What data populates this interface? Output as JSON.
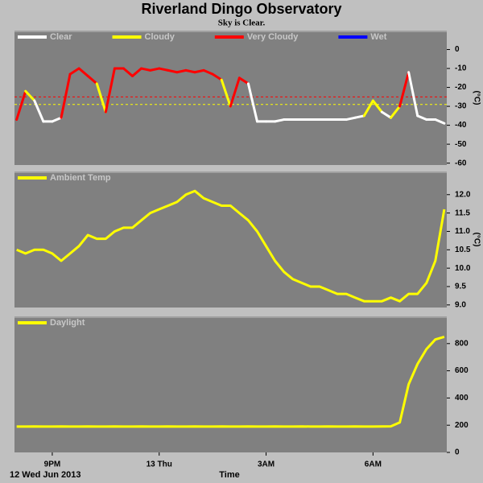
{
  "title": "Riverland Dingo Observatory",
  "subtitle": "Sky is Clear.",
  "date_label": "12 Wed Jun 2013",
  "xlabel": "Time",
  "chart_data": [
    {
      "type": "condition_line",
      "ylabel": "(°C)",
      "x": [
        20.0,
        20.25,
        20.5,
        20.75,
        21.0,
        21.25,
        21.5,
        21.75,
        22.0,
        22.25,
        22.5,
        22.75,
        23.0,
        23.25,
        23.5,
        23.75,
        24.0,
        24.25,
        24.5,
        24.75,
        25.0,
        25.25,
        25.5,
        25.75,
        26.0,
        26.25,
        26.5,
        26.75,
        27.0,
        27.25,
        27.5,
        27.75,
        28.0,
        28.25,
        28.5,
        28.75,
        29.0,
        29.25,
        29.5,
        29.75,
        30.0,
        30.25,
        30.5,
        30.75,
        31.0,
        31.25,
        31.5,
        31.75,
        32.0
      ],
      "xlim": [
        19.94,
        32.07
      ],
      "ylim": [
        -61,
        10
      ],
      "yticks": [
        0,
        -10,
        -20,
        -30,
        -40,
        -50,
        -60
      ],
      "thresholds": [
        {
          "value": -25,
          "color": "#ff0000"
        },
        {
          "value": -29,
          "color": "#ffff00"
        }
      ],
      "series": [
        {
          "name": "Clear",
          "color": "#ffffff",
          "values": [
            -37,
            null,
            null,
            -38,
            -38,
            -36,
            null,
            null,
            null,
            null,
            null,
            null,
            null,
            null,
            null,
            null,
            null,
            null,
            null,
            null,
            null,
            null,
            null,
            null,
            null,
            null,
            null,
            -38,
            -38,
            -38,
            -37,
            -37,
            -37,
            -37,
            -37,
            -37,
            -37,
            -37,
            -36,
            -35,
            null,
            null,
            -36,
            null,
            null,
            -35,
            -37,
            -37,
            -39
          ]
        },
        {
          "name": "Cloudy",
          "color": "#ffff00",
          "values": [
            null,
            null,
            -27,
            null,
            null,
            null,
            null,
            null,
            null,
            null,
            -33,
            null,
            null,
            null,
            null,
            null,
            null,
            null,
            null,
            null,
            null,
            null,
            null,
            null,
            -30,
            null,
            null,
            null,
            null,
            null,
            null,
            null,
            null,
            null,
            null,
            null,
            null,
            null,
            null,
            null,
            -27,
            -33,
            null,
            -30,
            null,
            null,
            null,
            null,
            null
          ]
        },
        {
          "name": "Very Cloudy",
          "color": "#ff0000",
          "values": [
            null,
            -22,
            null,
            null,
            null,
            null,
            -13,
            -10,
            -14,
            -18,
            null,
            -10,
            -10,
            -14,
            -10,
            -11,
            -10,
            -11,
            -12,
            -11,
            -12,
            -11,
            -13,
            -16,
            null,
            -15,
            -18,
            null,
            null,
            null,
            null,
            null,
            null,
            null,
            null,
            null,
            null,
            null,
            null,
            null,
            null,
            null,
            null,
            null,
            -12,
            null,
            null,
            null,
            null
          ]
        },
        {
          "name": "Wet",
          "color": "#0000ff",
          "values": [
            null,
            null,
            null,
            null,
            null,
            null,
            null,
            null,
            null,
            null,
            null,
            null,
            null,
            null,
            null,
            null,
            null,
            null,
            null,
            null,
            null,
            null,
            null,
            null,
            null,
            null,
            null,
            null,
            null,
            null,
            null,
            null,
            null,
            null,
            null,
            null,
            null,
            null,
            null,
            null,
            null,
            null,
            null,
            null,
            null,
            null,
            null,
            null,
            null
          ]
        }
      ]
    },
    {
      "type": "line",
      "ylabel": "(°C)",
      "x": [
        20.0,
        20.25,
        20.5,
        20.75,
        21.0,
        21.25,
        21.5,
        21.75,
        22.0,
        22.25,
        22.5,
        22.75,
        23.0,
        23.25,
        23.5,
        23.75,
        24.0,
        24.25,
        24.5,
        24.75,
        25.0,
        25.25,
        25.5,
        25.75,
        26.0,
        26.25,
        26.5,
        26.75,
        27.0,
        27.25,
        27.5,
        27.75,
        28.0,
        28.25,
        28.5,
        28.75,
        29.0,
        29.25,
        29.5,
        29.75,
        30.0,
        30.25,
        30.5,
        30.75,
        31.0,
        31.25,
        31.5,
        31.75,
        32.0
      ],
      "xlim": [
        19.94,
        32.07
      ],
      "ylim": [
        8.93,
        12.63
      ],
      "yticks": [
        {
          "value": 12,
          "label": "12.0"
        },
        11.5,
        {
          "value": 11,
          "label": "11.0"
        },
        10.5,
        {
          "value": 10,
          "label": "10.0"
        },
        9.5,
        {
          "value": 9,
          "label": "9.0"
        }
      ],
      "series": [
        {
          "name": "Ambient Temp",
          "color": "#ffff00",
          "values": [
            10.5,
            10.4,
            10.5,
            10.5,
            10.4,
            10.2,
            10.4,
            10.6,
            10.9,
            10.8,
            10.8,
            11.0,
            11.1,
            11.1,
            11.3,
            11.5,
            11.6,
            11.7,
            11.8,
            12.0,
            12.1,
            11.9,
            11.8,
            11.7,
            11.7,
            11.5,
            11.3,
            11.0,
            10.6,
            10.2,
            9.9,
            9.7,
            9.6,
            9.5,
            9.5,
            9.4,
            9.3,
            9.3,
            9.2,
            9.1,
            9.1,
            9.1,
            9.2,
            9.1,
            9.3,
            9.3,
            9.6,
            10.2,
            11.6
          ]
        }
      ]
    },
    {
      "type": "line",
      "x": [
        20.0,
        20.25,
        20.5,
        20.75,
        21.0,
        21.25,
        21.5,
        21.75,
        22.0,
        22.25,
        22.5,
        22.75,
        23.0,
        23.25,
        23.5,
        23.75,
        24.0,
        24.25,
        24.5,
        24.75,
        25.0,
        25.25,
        25.5,
        25.75,
        26.0,
        26.25,
        26.5,
        26.75,
        27.0,
        27.25,
        27.5,
        27.75,
        28.0,
        28.25,
        28.5,
        28.75,
        29.0,
        29.25,
        29.5,
        29.75,
        30.0,
        30.25,
        30.5,
        30.75,
        31.0,
        31.25,
        31.5,
        31.75,
        32.0
      ],
      "xlim": [
        19.94,
        32.07
      ],
      "xticks": [
        {
          "value": 21,
          "label": "9PM"
        },
        {
          "value": 24,
          "label": "13 Thu"
        },
        {
          "value": 27,
          "label": "3AM"
        },
        {
          "value": 30,
          "label": "6AM"
        }
      ],
      "ylim": [
        0,
        1000
      ],
      "yticks": [
        0,
        200,
        400,
        600,
        800
      ],
      "series": [
        {
          "name": "Daylight",
          "color": "#ffff00",
          "values": [
            190,
            190,
            191,
            190,
            190,
            191,
            190,
            190,
            191,
            190,
            190,
            191,
            190,
            190,
            191,
            190,
            190,
            191,
            190,
            190,
            191,
            190,
            190,
            191,
            190,
            190,
            191,
            190,
            190,
            191,
            190,
            190,
            191,
            190,
            190,
            191,
            190,
            190,
            191,
            190,
            190,
            191,
            192,
            220,
            500,
            650,
            760,
            830,
            850
          ]
        }
      ]
    }
  ]
}
